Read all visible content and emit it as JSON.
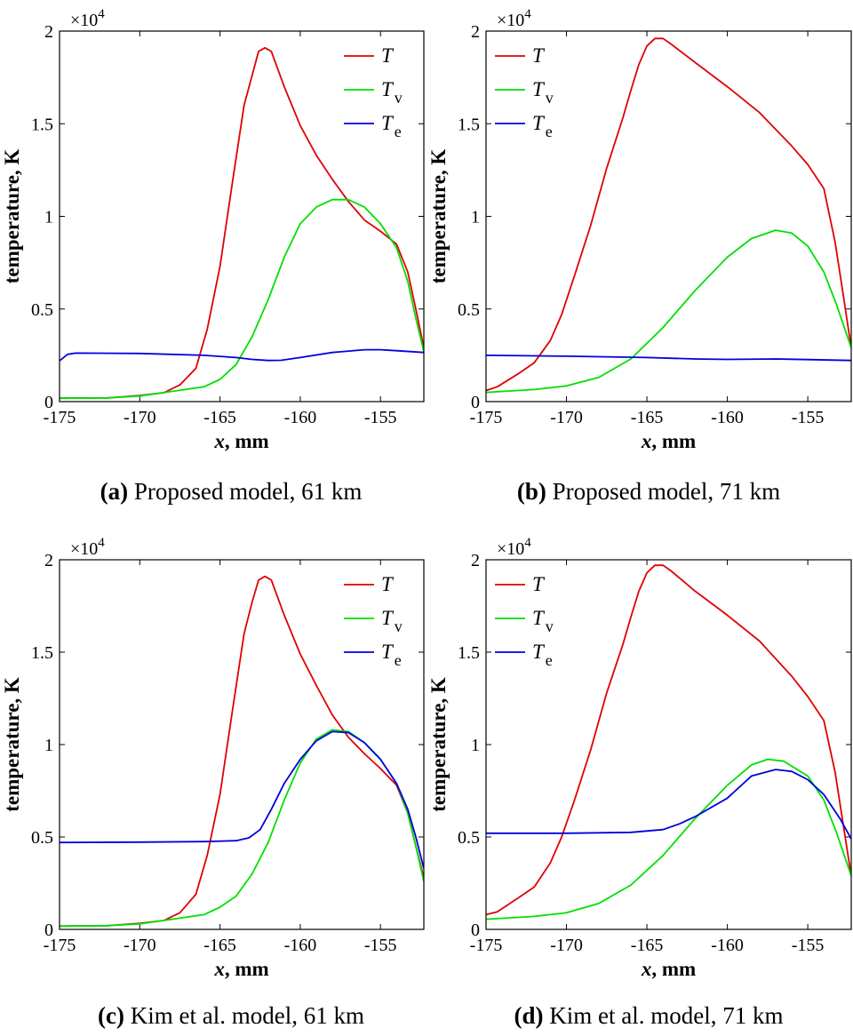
{
  "chart_data": [
    {
      "type": "line",
      "caption_label": "(a)",
      "caption_text": "Proposed model, 61 km",
      "xlabel_var": "x",
      "xlabel_rest": ", mm",
      "ylabel": "temperature, K",
      "multiplier": "×10",
      "multiplier_exp": "4",
      "xlim": [
        -175,
        -152.3
      ],
      "ylim": [
        0,
        20000
      ],
      "xticks": [
        "-175",
        "-170",
        "-165",
        "-160",
        "-155"
      ],
      "yticks": [
        "0",
        "0.5",
        "1",
        "1.5",
        "2"
      ],
      "legend_position": "top-right",
      "series": [
        {
          "name": "T",
          "sub": "",
          "color": "#e00000",
          "points": [
            [
              -175,
              180
            ],
            [
              -172,
              200
            ],
            [
              -170,
              330
            ],
            [
              -168.5,
              480
            ],
            [
              -167.5,
              900
            ],
            [
              -166.5,
              1800
            ],
            [
              -165.8,
              3900
            ],
            [
              -165,
              7300
            ],
            [
              -164.2,
              12000
            ],
            [
              -163.5,
              16000
            ],
            [
              -163,
              17600
            ],
            [
              -162.6,
              18900
            ],
            [
              -162.2,
              19100
            ],
            [
              -161.8,
              18900
            ],
            [
              -161,
              17000
            ],
            [
              -160,
              14900
            ],
            [
              -159,
              13300
            ],
            [
              -158,
              12000
            ],
            [
              -157,
              10800
            ],
            [
              -156,
              9800
            ],
            [
              -155,
              9200
            ],
            [
              -154,
              8500
            ],
            [
              -153.3,
              7000
            ],
            [
              -152.8,
              5000
            ],
            [
              -152.3,
              2900
            ]
          ]
        },
        {
          "name": "T",
          "sub": "v",
          "color": "#00e000",
          "points": [
            [
              -175,
              180
            ],
            [
              -172,
              200
            ],
            [
              -170,
              300
            ],
            [
              -168,
              550
            ],
            [
              -166,
              800
            ],
            [
              -165,
              1200
            ],
            [
              -164,
              2000
            ],
            [
              -163,
              3500
            ],
            [
              -162,
              5500
            ],
            [
              -161,
              7800
            ],
            [
              -160,
              9600
            ],
            [
              -159,
              10500
            ],
            [
              -158,
              10900
            ],
            [
              -157,
              10900
            ],
            [
              -156,
              10500
            ],
            [
              -155,
              9600
            ],
            [
              -154,
              8300
            ],
            [
              -153.3,
              6500
            ],
            [
              -152.8,
              4500
            ],
            [
              -152.3,
              2700
            ]
          ]
        },
        {
          "name": "T",
          "sub": "e",
          "color": "#0000e0",
          "points": [
            [
              -175,
              2200
            ],
            [
              -174.5,
              2550
            ],
            [
              -174,
              2620
            ],
            [
              -170,
              2600
            ],
            [
              -166,
              2500
            ],
            [
              -164,
              2380
            ],
            [
              -163,
              2280
            ],
            [
              -162,
              2220
            ],
            [
              -161.2,
              2230
            ],
            [
              -160,
              2380
            ],
            [
              -158,
              2650
            ],
            [
              -156,
              2800
            ],
            [
              -155,
              2800
            ],
            [
              -154,
              2750
            ],
            [
              -152.3,
              2650
            ]
          ]
        }
      ]
    },
    {
      "type": "line",
      "caption_label": "(b)",
      "caption_text": "Proposed model, 71 km",
      "xlabel_var": "x",
      "xlabel_rest": ", mm",
      "ylabel": "temperature, K",
      "multiplier": "×10",
      "multiplier_exp": "4",
      "xlim": [
        -175,
        -152.3
      ],
      "ylim": [
        0,
        20000
      ],
      "xticks": [
        "-175",
        "-170",
        "-165",
        "-160",
        "-155"
      ],
      "yticks": [
        "0",
        "0.5",
        "1",
        "1.5",
        "2"
      ],
      "legend_position": "top-left",
      "series": [
        {
          "name": "T",
          "sub": "",
          "color": "#e00000",
          "points": [
            [
              -175,
              600
            ],
            [
              -174.3,
              800
            ],
            [
              -173,
              1500
            ],
            [
              -172,
              2100
            ],
            [
              -171,
              3300
            ],
            [
              -170.3,
              4700
            ],
            [
              -169.5,
              6800
            ],
            [
              -168.5,
              9500
            ],
            [
              -167.5,
              12600
            ],
            [
              -166.5,
              15300
            ],
            [
              -166,
              16800
            ],
            [
              -165.5,
              18200
            ],
            [
              -165,
              19200
            ],
            [
              -164.5,
              19600
            ],
            [
              -164,
              19600
            ],
            [
              -163.5,
              19300
            ],
            [
              -162,
              18300
            ],
            [
              -160,
              17000
            ],
            [
              -158,
              15600
            ],
            [
              -156,
              13800
            ],
            [
              -155,
              12800
            ],
            [
              -154,
              11500
            ],
            [
              -153.3,
              8600
            ],
            [
              -152.8,
              5800
            ],
            [
              -152.3,
              2900
            ]
          ]
        },
        {
          "name": "T",
          "sub": "v",
          "color": "#00e000",
          "points": [
            [
              -175,
              500
            ],
            [
              -172,
              650
            ],
            [
              -170,
              850
            ],
            [
              -168,
              1300
            ],
            [
              -166,
              2300
            ],
            [
              -164,
              4000
            ],
            [
              -162,
              6000
            ],
            [
              -160,
              7800
            ],
            [
              -158.5,
              8800
            ],
            [
              -157,
              9250
            ],
            [
              -156,
              9100
            ],
            [
              -155,
              8400
            ],
            [
              -154,
              7000
            ],
            [
              -153.2,
              5200
            ],
            [
              -152.3,
              2900
            ]
          ]
        },
        {
          "name": "T",
          "sub": "e",
          "color": "#0000e0",
          "points": [
            [
              -175,
              2500
            ],
            [
              -170,
              2450
            ],
            [
              -165,
              2380
            ],
            [
              -162,
              2300
            ],
            [
              -160,
              2280
            ],
            [
              -157,
              2300
            ],
            [
              -155,
              2270
            ],
            [
              -152.3,
              2220
            ]
          ]
        }
      ]
    },
    {
      "type": "line",
      "caption_label": "(c)",
      "caption_text": "Kim et al. model, 61 km",
      "xlabel_var": "x",
      "xlabel_rest": ", mm",
      "ylabel": "temperature, K",
      "multiplier": "×10",
      "multiplier_exp": "4",
      "xlim": [
        -175,
        -152.3
      ],
      "ylim": [
        0,
        20000
      ],
      "xticks": [
        "-175",
        "-170",
        "-165",
        "-160",
        "-155"
      ],
      "yticks": [
        "0",
        "0.5",
        "1",
        "1.5",
        "2"
      ],
      "legend_position": "top-right",
      "series": [
        {
          "name": "T",
          "sub": "",
          "color": "#e00000",
          "points": [
            [
              -175,
              180
            ],
            [
              -172,
              200
            ],
            [
              -170,
              330
            ],
            [
              -168.5,
              480
            ],
            [
              -167.5,
              900
            ],
            [
              -166.5,
              1900
            ],
            [
              -165.8,
              4000
            ],
            [
              -165,
              7300
            ],
            [
              -164.2,
              12000
            ],
            [
              -163.5,
              16000
            ],
            [
              -163,
              17700
            ],
            [
              -162.6,
              18900
            ],
            [
              -162.2,
              19100
            ],
            [
              -161.8,
              18900
            ],
            [
              -161,
              17000
            ],
            [
              -160,
              14900
            ],
            [
              -159,
              13200
            ],
            [
              -158,
              11600
            ],
            [
              -157,
              10400
            ],
            [
              -156,
              9500
            ],
            [
              -155,
              8700
            ],
            [
              -154,
              7800
            ],
            [
              -153.3,
              6300
            ],
            [
              -152.8,
              4500
            ],
            [
              -152.3,
              2800
            ]
          ]
        },
        {
          "name": "T",
          "sub": "v",
          "color": "#00e000",
          "points": [
            [
              -175,
              180
            ],
            [
              -172,
              200
            ],
            [
              -170,
              300
            ],
            [
              -168,
              550
            ],
            [
              -166,
              800
            ],
            [
              -165,
              1200
            ],
            [
              -164,
              1800
            ],
            [
              -163,
              3000
            ],
            [
              -162,
              4700
            ],
            [
              -161,
              7000
            ],
            [
              -160,
              9000
            ],
            [
              -159,
              10300
            ],
            [
              -158,
              10800
            ],
            [
              -157,
              10700
            ],
            [
              -156,
              10100
            ],
            [
              -155,
              9200
            ],
            [
              -154,
              7900
            ],
            [
              -153.3,
              6300
            ],
            [
              -152.8,
              4500
            ],
            [
              -152.3,
              2600
            ]
          ]
        },
        {
          "name": "T",
          "sub": "e",
          "color": "#0000e0",
          "points": [
            [
              -175,
              4700
            ],
            [
              -170,
              4720
            ],
            [
              -166,
              4750
            ],
            [
              -164,
              4800
            ],
            [
              -163.2,
              4950
            ],
            [
              -162.5,
              5400
            ],
            [
              -161.8,
              6500
            ],
            [
              -161,
              7900
            ],
            [
              -160,
              9200
            ],
            [
              -159,
              10200
            ],
            [
              -158,
              10700
            ],
            [
              -157,
              10650
            ],
            [
              -156,
              10100
            ],
            [
              -155,
              9200
            ],
            [
              -154,
              7900
            ],
            [
              -153.3,
              6500
            ],
            [
              -152.8,
              5000
            ],
            [
              -152.3,
              3300
            ]
          ]
        }
      ]
    },
    {
      "type": "line",
      "caption_label": "(d)",
      "caption_text": "Kim et al. model, 71 km",
      "xlabel_var": "x",
      "xlabel_rest": ", mm",
      "ylabel": "temperature, K",
      "multiplier": "×10",
      "multiplier_exp": "4",
      "xlim": [
        -175,
        -152.3
      ],
      "ylim": [
        0,
        20000
      ],
      "xticks": [
        "-175",
        "-170",
        "-165",
        "-160",
        "-155"
      ],
      "yticks": [
        "0",
        "0.5",
        "1",
        "1.5",
        "2"
      ],
      "legend_position": "top-left",
      "series": [
        {
          "name": "T",
          "sub": "",
          "color": "#e00000",
          "points": [
            [
              -175,
              800
            ],
            [
              -174.3,
              950
            ],
            [
              -173,
              1700
            ],
            [
              -172,
              2300
            ],
            [
              -171,
              3600
            ],
            [
              -170.3,
              5000
            ],
            [
              -169.5,
              7000
            ],
            [
              -168.5,
              9700
            ],
            [
              -167.5,
              12800
            ],
            [
              -166.5,
              15400
            ],
            [
              -166,
              16900
            ],
            [
              -165.5,
              18300
            ],
            [
              -165,
              19300
            ],
            [
              -164.5,
              19700
            ],
            [
              -164,
              19700
            ],
            [
              -163.5,
              19400
            ],
            [
              -162,
              18300
            ],
            [
              -160,
              17000
            ],
            [
              -158,
              15600
            ],
            [
              -156,
              13700
            ],
            [
              -155,
              12600
            ],
            [
              -154,
              11300
            ],
            [
              -153.3,
              8500
            ],
            [
              -152.8,
              5700
            ],
            [
              -152.3,
              2900
            ]
          ]
        },
        {
          "name": "T",
          "sub": "v",
          "color": "#00e000",
          "points": [
            [
              -175,
              550
            ],
            [
              -172,
              700
            ],
            [
              -170,
              900
            ],
            [
              -168,
              1400
            ],
            [
              -166,
              2400
            ],
            [
              -164,
              4000
            ],
            [
              -162,
              6000
            ],
            [
              -160,
              7800
            ],
            [
              -158.5,
              8900
            ],
            [
              -157.5,
              9200
            ],
            [
              -156.5,
              9100
            ],
            [
              -155,
              8300
            ],
            [
              -154,
              7000
            ],
            [
              -153.2,
              5200
            ],
            [
              -152.3,
              2900
            ]
          ]
        },
        {
          "name": "T",
          "sub": "e",
          "color": "#0000e0",
          "points": [
            [
              -175,
              5200
            ],
            [
              -170,
              5200
            ],
            [
              -166,
              5250
            ],
            [
              -164,
              5400
            ],
            [
              -163,
              5700
            ],
            [
              -162,
              6100
            ],
            [
              -160,
              7100
            ],
            [
              -158.5,
              8300
            ],
            [
              -157,
              8650
            ],
            [
              -156,
              8550
            ],
            [
              -155,
              8100
            ],
            [
              -154,
              7300
            ],
            [
              -153,
              6000
            ],
            [
              -152.3,
              4900
            ]
          ]
        }
      ]
    }
  ]
}
